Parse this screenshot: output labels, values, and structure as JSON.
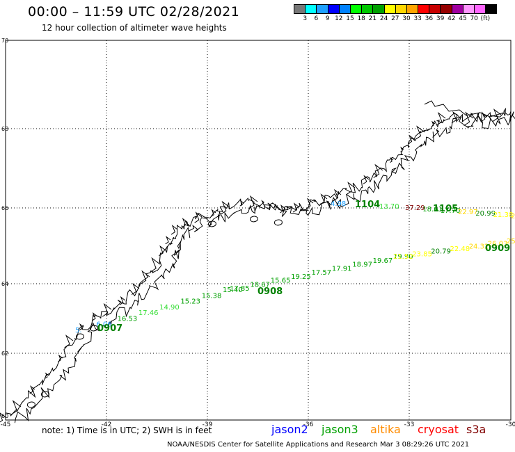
{
  "header": {
    "title": "00:00 – 11:59 UTC 02/28/2021",
    "subtitle": "12 hour collection of altimeter wave heights"
  },
  "color_scale": {
    "colors": [
      "#777777",
      "#00ffff",
      "#1ea0ff",
      "#0000ff",
      "#0082ff",
      "#00ff00",
      "#00c800",
      "#00a000",
      "#ffff00",
      "#ffd700",
      "#ffa500",
      "#ff0000",
      "#c80000",
      "#960000",
      "#a000a0",
      "#ff96ff",
      "#ff64ff",
      "#000000"
    ],
    "labels": [
      "3",
      "6",
      "9",
      "12",
      "15",
      "18",
      "21",
      "24",
      "27",
      "30",
      "33",
      "36",
      "39",
      "42",
      "45",
      "70",
      "(ft)"
    ]
  },
  "axes": {
    "lat_labels": [
      "70",
      "68",
      "66",
      "64",
      "62",
      "60"
    ],
    "lon_labels": [
      "-45",
      "-42",
      "-39",
      "-36",
      "-33",
      "-30"
    ]
  },
  "tracks": [
    {
      "id": "jason3-0907",
      "label": "0907",
      "color": "#008000",
      "values": [
        {
          "t": "5.",
          "c": "#1ea0ff"
        },
        {
          "t": "6.06",
          "c": "#1ea0ff"
        },
        {
          "t": "16.53",
          "c": "#00a000"
        },
        {
          "t": "17.46",
          "c": "#33dd33"
        },
        {
          "t": "14.90",
          "c": "#33dd33"
        },
        {
          "t": "15.23",
          "c": "#00a000"
        },
        {
          "t": "15.38",
          "c": "#00a000"
        },
        {
          "t": "15.40",
          "c": "#00a000"
        }
      ]
    },
    {
      "id": "jason3-0908",
      "label": "0908",
      "color": "#008000",
      "values": [
        {
          "t": "17.85",
          "c": "#00a000"
        },
        {
          "t": "18.67",
          "c": "#00a000"
        },
        {
          "t": "15.65",
          "c": "#00a000"
        },
        {
          "t": "19.25",
          "c": "#00a000"
        },
        {
          "t": "17.57",
          "c": "#00a000"
        },
        {
          "t": "17.91",
          "c": "#00a000"
        },
        {
          "t": "18.97",
          "c": "#00a000"
        },
        {
          "t": "19.67",
          "c": "#00a000"
        },
        {
          "t": "19.90",
          "c": "#00a000"
        }
      ]
    },
    {
      "id": "jason3-0909",
      "label": "0909",
      "color": "#008000",
      "values": [
        {
          "t": "21.52",
          "c": "#ffff00"
        },
        {
          "t": "23.85",
          "c": "#ffff00"
        },
        {
          "t": "20.79",
          "c": "#008000"
        },
        {
          "t": "22.48",
          "c": "#ffff00"
        },
        {
          "t": "24.32",
          "c": "#ffd700"
        },
        {
          "t": "26.03",
          "c": "#ffd700"
        },
        {
          "t": "25.83",
          "c": "#ffd700"
        }
      ]
    },
    {
      "id": "altika-1104",
      "label": "1104",
      "color": "#008000",
      "values": [
        {
          "t": "4.98",
          "c": "#1ea0ff"
        },
        {
          "t": "13.70",
          "c": "#33dd33"
        }
      ]
    },
    {
      "id": "altika-1105",
      "label": "1105",
      "color": "#008000",
      "values": [
        {
          "t": "37.29",
          "c": "#800000"
        },
        {
          "t": "18.61",
          "c": "#00a000"
        },
        {
          "t": "17.70",
          "c": "#00a000"
        },
        {
          "t": "22.97",
          "c": "#ffd700"
        },
        {
          "t": "20.99",
          "c": "#008000"
        },
        {
          "t": "21.38",
          "c": "#ffff00"
        },
        {
          "t": "25",
          "c": "#ffd700"
        }
      ]
    }
  ],
  "footer": {
    "note": "note: 1) Time is in UTC; 2) SWH is in feet",
    "legend": [
      {
        "name": "jason2",
        "color": "#0000ff"
      },
      {
        "name": "jason3",
        "color": "#00a000"
      },
      {
        "name": "altika",
        "color": "#ff8c00"
      },
      {
        "name": "cryosat",
        "color": "#ff0000"
      },
      {
        "name": "s3a",
        "color": "#800000"
      }
    ],
    "credit": "NOAA/NESDIS Center for Satellite Applications and Research   Mar  3 08:29:26 UTC 2021"
  }
}
